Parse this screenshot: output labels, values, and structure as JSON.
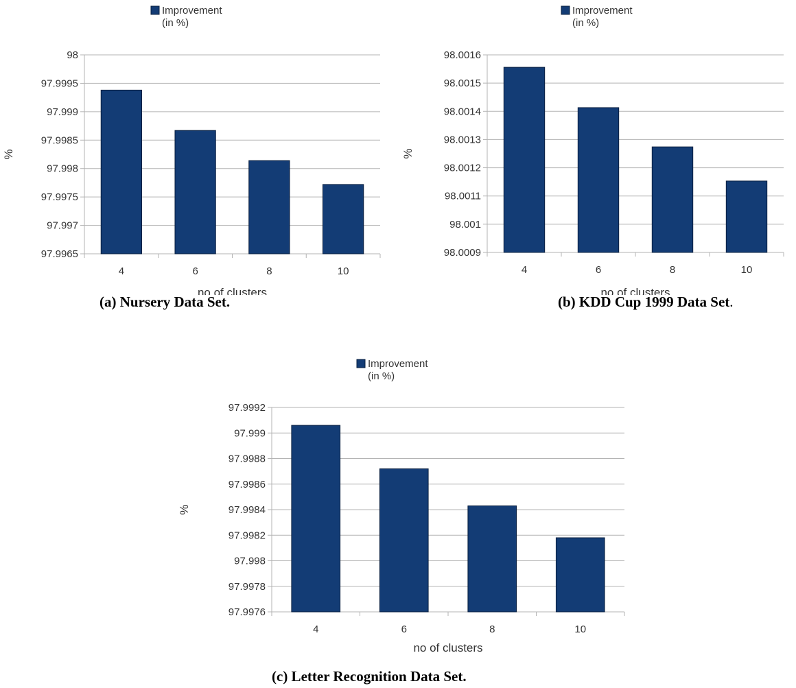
{
  "charts": [
    {
      "caption": "(a) Nursery Data Set.",
      "chart_data": {
        "type": "bar",
        "categories": [
          "4",
          "6",
          "8",
          "10"
        ],
        "series": [
          {
            "name": "Improvement\n(in %)",
            "values": [
              97.99938,
              97.99867,
              97.99814,
              97.99772
            ]
          }
        ],
        "xlabel": "no of clusters",
        "ylabel": "%",
        "ylim": [
          97.9965,
          98
        ],
        "yticks": [
          "97.9965",
          "97.997",
          "97.9975",
          "97.998",
          "97.9985",
          "97.999",
          "97.9995",
          "98"
        ],
        "grid": true,
        "legend": "top"
      }
    },
    {
      "caption": "(b) KDD Cup 1999 Data Set",
      "caption_suffix": ".",
      "chart_data": {
        "type": "bar",
        "categories": [
          "4",
          "6",
          "8",
          "10"
        ],
        "series": [
          {
            "name": "Improvement\n(in %)",
            "values": [
              98.001556,
              98.001413,
              98.001274,
              98.001153
            ]
          }
        ],
        "xlabel": "no of clusters",
        "ylabel": "%",
        "ylim": [
          98.0009,
          98.0016
        ],
        "yticks": [
          "98.0009",
          "98.001",
          "98.0011",
          "98.0012",
          "98.0013",
          "98.0014",
          "98.0015",
          "98.0016"
        ],
        "grid": true,
        "legend": "top"
      }
    },
    {
      "caption": "(c) Letter Recognition Data Set.",
      "chart_data": {
        "type": "bar",
        "categories": [
          "4",
          "6",
          "8",
          "10"
        ],
        "series": [
          {
            "name": "Improvement\n(in %)",
            "values": [
              97.99906,
              97.99872,
              97.99843,
              97.99818
            ]
          }
        ],
        "xlabel": "no of clusters",
        "ylabel": "%",
        "ylim": [
          97.9976,
          97.9992
        ],
        "yticks": [
          "97.9976",
          "97.9978",
          "97.998",
          "97.9982",
          "97.9984",
          "97.9986",
          "97.9988",
          "97.999",
          "97.9992"
        ],
        "grid": true,
        "legend": "top"
      }
    }
  ],
  "colors": {
    "bar": "#133c75",
    "bar_stroke": "#0a1f3f",
    "grid": "#b3b3b3",
    "axis": "#b3b3b3",
    "text": "#333333"
  }
}
